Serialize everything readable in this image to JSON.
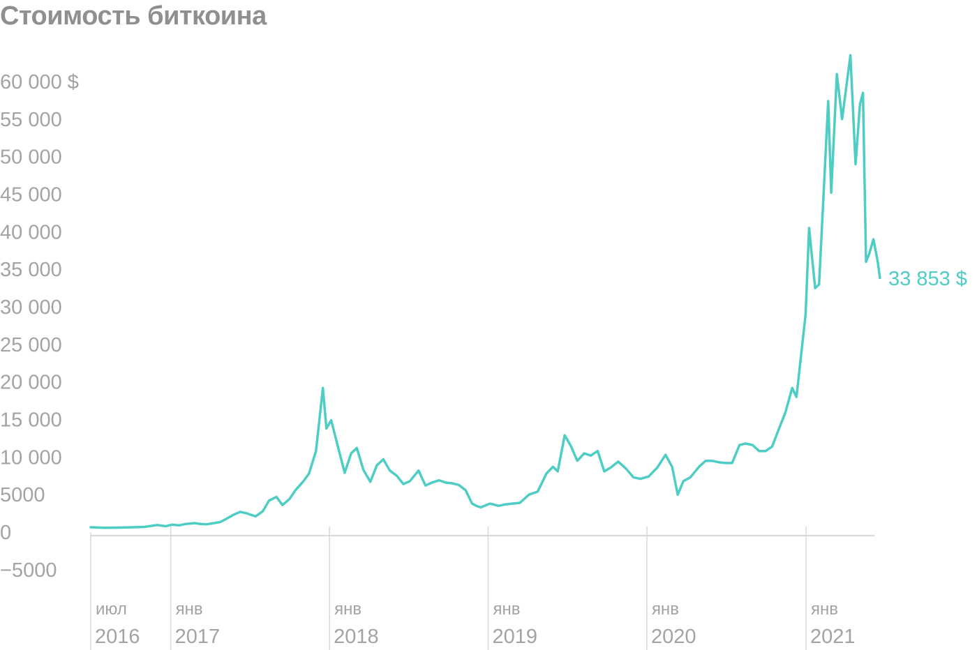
{
  "chart_data": {
    "type": "line",
    "title": "Стоимость биткоина",
    "xlabel": "",
    "ylabel": "",
    "ylim": [
      -5000,
      60000
    ],
    "xlim": [
      "2016-07-01",
      "2021-06-20"
    ],
    "grid": false,
    "line_color": "#4ecdc4",
    "text_color": "#a3a3a3",
    "title_color": "#8f8f8f",
    "axis_color": "#d8d8d8",
    "y_ticks": [
      {
        "value": 60000,
        "label": "60 000 $"
      },
      {
        "value": 55000,
        "label": "55 000"
      },
      {
        "value": 50000,
        "label": "50 000"
      },
      {
        "value": 45000,
        "label": "45 000"
      },
      {
        "value": 40000,
        "label": "40 000"
      },
      {
        "value": 35000,
        "label": "35 000"
      },
      {
        "value": 30000,
        "label": "30 000"
      },
      {
        "value": 25000,
        "label": "25 000"
      },
      {
        "value": 20000,
        "label": "20 000"
      },
      {
        "value": 15000,
        "label": "15 000"
      },
      {
        "value": 10000,
        "label": "10 000"
      },
      {
        "value": 5000,
        "label": "5000"
      },
      {
        "value": 0,
        "label": "0"
      },
      {
        "value": -5000,
        "label": "−5000"
      }
    ],
    "x_ticks": [
      {
        "date": "2016-07-01",
        "month": "июл",
        "year": "2016"
      },
      {
        "date": "2017-01-01",
        "month": "янв",
        "year": "2017"
      },
      {
        "date": "2018-01-01",
        "month": "янв",
        "year": "2018"
      },
      {
        "date": "2019-01-01",
        "month": "янв",
        "year": "2019"
      },
      {
        "date": "2020-01-01",
        "month": "янв",
        "year": "2020"
      },
      {
        "date": "2021-01-01",
        "month": "янв",
        "year": "2021"
      }
    ],
    "last_value_label": "33 853 $",
    "series": [
      {
        "x": [
          "2016-07-01",
          "2016-08-01",
          "2016-09-01",
          "2016-10-01",
          "2016-11-01",
          "2016-12-01",
          "2016-12-20",
          "2017-01-05",
          "2017-01-20",
          "2017-02-05",
          "2017-02-25",
          "2017-03-10",
          "2017-03-25",
          "2017-04-10",
          "2017-04-25",
          "2017-05-10",
          "2017-05-25",
          "2017-06-10",
          "2017-06-25",
          "2017-07-15",
          "2017-08-01",
          "2017-08-15",
          "2017-09-01",
          "2017-09-15",
          "2017-10-01",
          "2017-10-15",
          "2017-11-01",
          "2017-11-15",
          "2017-12-01",
          "2017-12-17",
          "2017-12-25",
          "2018-01-05",
          "2018-01-20",
          "2018-02-05",
          "2018-02-20",
          "2018-03-05",
          "2018-03-20",
          "2018-04-05",
          "2018-04-20",
          "2018-05-05",
          "2018-05-20",
          "2018-06-05",
          "2018-06-20",
          "2018-07-05",
          "2018-07-25",
          "2018-08-10",
          "2018-08-25",
          "2018-09-10",
          "2018-09-25",
          "2018-10-10",
          "2018-10-25",
          "2018-11-10",
          "2018-11-25",
          "2018-12-05",
          "2018-12-15",
          "2019-01-05",
          "2019-01-25",
          "2019-02-10",
          "2019-02-25",
          "2019-03-15",
          "2019-04-05",
          "2019-04-25",
          "2019-05-15",
          "2019-05-30",
          "2019-06-10",
          "2019-06-26",
          "2019-07-10",
          "2019-07-25",
          "2019-08-10",
          "2019-08-25",
          "2019-09-10",
          "2019-09-25",
          "2019-10-10",
          "2019-10-27",
          "2019-11-15",
          "2019-12-01",
          "2019-12-17",
          "2020-01-05",
          "2020-01-25",
          "2020-02-13",
          "2020-02-28",
          "2020-03-12",
          "2020-03-25",
          "2020-04-10",
          "2020-04-30",
          "2020-05-15",
          "2020-05-30",
          "2020-06-15",
          "2020-06-30",
          "2020-07-15",
          "2020-08-01",
          "2020-08-15",
          "2020-08-31",
          "2020-09-15",
          "2020-09-30",
          "2020-10-15",
          "2020-10-31",
          "2020-11-15",
          "2020-11-30",
          "2020-12-10",
          "2020-12-20",
          "2020-12-31",
          "2021-01-08",
          "2021-01-15",
          "2021-01-22",
          "2021-01-31",
          "2021-02-10",
          "2021-02-21",
          "2021-02-28",
          "2021-03-13",
          "2021-03-25",
          "2021-04-13",
          "2021-04-25",
          "2021-05-05",
          "2021-05-12",
          "2021-05-19",
          "2021-05-26",
          "2021-06-05",
          "2021-06-15",
          "2021-06-20"
        ],
        "y": [
          650,
          580,
          600,
          640,
          700,
          950,
          790,
          1000,
          900,
          1100,
          1200,
          1100,
          1050,
          1200,
          1350,
          1800,
          2300,
          2700,
          2500,
          2100,
          2800,
          4200,
          4700,
          3600,
          4400,
          5600,
          6700,
          7800,
          10800,
          19200,
          13800,
          14900,
          11500,
          7900,
          10500,
          11200,
          8300,
          6700,
          8900,
          9700,
          8200,
          7500,
          6400,
          6800,
          8200,
          6200,
          6600,
          6900,
          6600,
          6500,
          6300,
          5600,
          3800,
          3500,
          3300,
          3800,
          3500,
          3700,
          3800,
          3900,
          5000,
          5400,
          7800,
          8700,
          8100,
          12900,
          11500,
          9500,
          10500,
          10200,
          10800,
          8100,
          8600,
          9400,
          8400,
          7300,
          7100,
          7400,
          8600,
          10300,
          8700,
          5000,
          6800,
          7300,
          8700,
          9500,
          9500,
          9300,
          9200,
          9200,
          11600,
          11800,
          11600,
          10800,
          10800,
          11400,
          13800,
          16000,
          19200,
          18000,
          23200,
          29000,
          40500,
          36500,
          32500,
          33000,
          44500,
          57400,
          45200,
          61000,
          55000,
          63500,
          49000,
          57000,
          58500,
          36000,
          37000,
          39000,
          36000,
          33853
        ]
      }
    ]
  }
}
